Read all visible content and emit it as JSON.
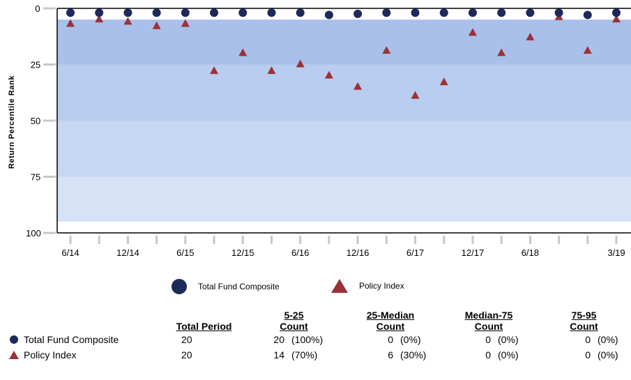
{
  "chart_data": {
    "type": "scatter",
    "ylabel": "Return Percentile Rank",
    "ylim": [
      0,
      100
    ],
    "y_inverted": true,
    "y_ticks": [
      "0",
      "25",
      "50",
      "75",
      "100"
    ],
    "shaded_bands": [
      {
        "from": 5,
        "to": 25,
        "color": "#a9c0ea"
      },
      {
        "from": 25,
        "to": 50,
        "color": "#b8cdef"
      },
      {
        "from": 50,
        "to": 75,
        "color": "#c6d7f2"
      },
      {
        "from": 75,
        "to": 95,
        "color": "#d6e2f6"
      }
    ],
    "x_tick_labels": [
      "6/14",
      "12/14",
      "6/15",
      "12/15",
      "6/16",
      "12/16",
      "6/17",
      "12/17",
      "6/18",
      "3/19"
    ],
    "x_tick_indices": [
      0,
      2,
      4,
      6,
      8,
      10,
      12,
      14,
      16,
      19
    ],
    "n_periods": 20,
    "series": [
      {
        "name": "Total Fund Composite",
        "marker": "circle",
        "color": "#1b2a5a",
        "values": [
          1,
          1,
          1,
          1,
          1,
          1,
          1,
          1,
          1,
          2,
          1.5,
          1,
          1,
          1,
          1,
          1,
          1,
          1,
          2,
          1
        ]
      },
      {
        "name": "Policy Index",
        "marker": "triangle",
        "color": "#9b3237",
        "values": [
          7,
          5,
          6,
          8,
          7,
          28,
          20,
          28,
          25,
          30,
          35,
          19,
          39,
          33,
          11,
          20,
          13,
          4,
          19,
          5
        ]
      }
    ]
  },
  "legend": {
    "items": [
      "Total Fund Composite",
      "Policy Index"
    ]
  },
  "stats_table": {
    "headers": {
      "total": "Total Period",
      "c1_line1": "5-25",
      "c1_line2": "Count",
      "c2_line1": "25-Median",
      "c2_line2": "Count",
      "c3_line1": "Median-75",
      "c3_line2": "Count",
      "c4_line1": "75-95",
      "c4_line2": "Count"
    },
    "rows": [
      {
        "label": "Total Fund Composite",
        "total": "20",
        "c1": "20",
        "p1": "(100%)",
        "c2": "0",
        "p2": "(0%)",
        "c3": "0",
        "p3": "(0%)",
        "c4": "0",
        "p4": "(0%)"
      },
      {
        "label": "Policy Index",
        "total": "20",
        "c1": "14",
        "p1": "(70%)",
        "c2": "6",
        "p2": "(30%)",
        "c3": "0",
        "p3": "(0%)",
        "c4": "0",
        "p4": "(0%)"
      }
    ]
  }
}
